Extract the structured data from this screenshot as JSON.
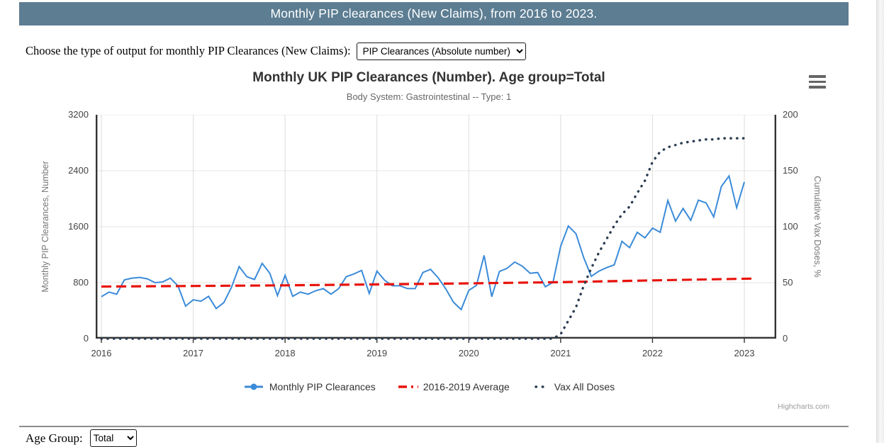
{
  "page": {
    "header_title": "Monthly PIP clearances (New Claims), from 2016 to 2023.",
    "output_label": "Choose the type of output for monthly PIP Clearances (New Claims):",
    "output_select": {
      "selected": "PIP Clearances (Absolute number)"
    },
    "age_group_label": "Age Group:",
    "age_group_select": {
      "selected": "Total"
    },
    "credits": "Highcharts.com"
  },
  "colors": {
    "header_bg": "#5c7d92",
    "pip_line": "#3b8bd9",
    "average_line": "#e8130c",
    "vax_line": "#2b3d52",
    "grid": "#e6e6e6",
    "axis": "#333333"
  },
  "chart_data": {
    "type": "line",
    "title": "Monthly UK PIP Clearances (Number). Age group=Total",
    "subtitle": "Body System: Gastrointestinal -- Type: 1",
    "grid": true,
    "legend_position": "bottom",
    "x_axis": {
      "ticks": [
        2016,
        2017,
        2018,
        2019,
        2020,
        2021,
        2022,
        2023
      ],
      "range": [
        2015.94,
        2023.35
      ]
    },
    "y_axis_left": {
      "label": "Monthly PIP Clearances, Number",
      "ticks": [
        0,
        800,
        1600,
        2400,
        3200
      ],
      "range": [
        0,
        3200
      ]
    },
    "y_axis_right": {
      "label": "Cumulative Vax Doses, %",
      "ticks": [
        0,
        50,
        100,
        150,
        200
      ],
      "range": [
        0,
        200
      ]
    },
    "series": [
      {
        "name": "Monthly PIP Clearances",
        "axis": "left",
        "style": "solid",
        "color": "#3b8bd9",
        "start_month": "2016-01",
        "monthly_values": [
          600,
          665,
          635,
          840,
          865,
          875,
          855,
          800,
          810,
          865,
          755,
          465,
          555,
          535,
          605,
          430,
          515,
          735,
          1030,
          885,
          845,
          1075,
          935,
          615,
          905,
          605,
          665,
          635,
          685,
          715,
          635,
          715,
          885,
          925,
          975,
          645,
          965,
          835,
          755,
          755,
          715,
          715,
          945,
          990,
          870,
          710,
          520,
          415,
          690,
          760,
          1190,
          600,
          960,
          1005,
          1095,
          1035,
          935,
          945,
          740,
          805,
          1320,
          1610,
          1500,
          1160,
          890,
          965,
          1015,
          1055,
          1390,
          1300,
          1520,
          1440,
          1580,
          1520,
          1975,
          1680,
          1860,
          1690,
          1980,
          1940,
          1740,
          2175,
          2325,
          1870,
          2240
        ]
      },
      {
        "name": "2016-2019 Average",
        "axis": "left",
        "style": "dashed",
        "color": "#e8130c",
        "x_years": [
          2016,
          2017,
          2018,
          2019,
          2020,
          2021,
          2022,
          2023.08
        ],
        "values": [
          744,
          752,
          762,
          775,
          790,
          807,
          832,
          858
        ]
      },
      {
        "name": "Vax All Doses",
        "axis": "right",
        "style": "dotted",
        "color": "#2b3d52",
        "start_month": "2016-01",
        "monthly_values": [
          0,
          0,
          0,
          0,
          0,
          0,
          0,
          0,
          0,
          0,
          0,
          0,
          0,
          0,
          0,
          0,
          0,
          0,
          0,
          0,
          0,
          0,
          0,
          0,
          0,
          0,
          0,
          0,
          0,
          0,
          0,
          0,
          0,
          0,
          0,
          0,
          0,
          0,
          0,
          0,
          0,
          0,
          0,
          0,
          0,
          0,
          0,
          0,
          0,
          0,
          0,
          0,
          0,
          0,
          0,
          0,
          0,
          0,
          0,
          0,
          4,
          16,
          28,
          47,
          63,
          77,
          89,
          101,
          111,
          118,
          130,
          141,
          158,
          167,
          171,
          173,
          175,
          176,
          177,
          178,
          178,
          179,
          179,
          179,
          179
        ]
      }
    ]
  }
}
